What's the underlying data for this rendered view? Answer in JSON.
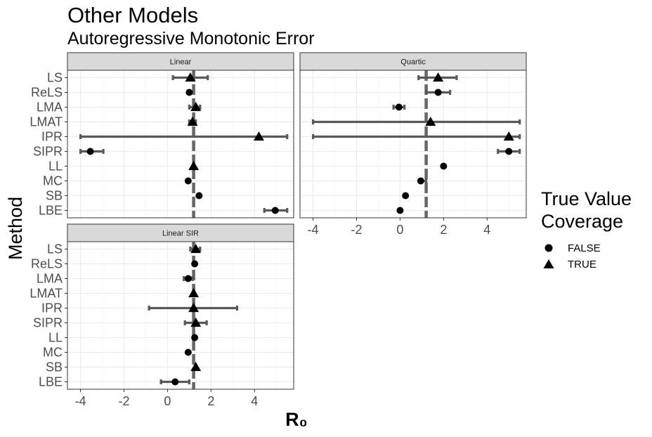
{
  "title": "Other Models",
  "subtitle": "Autoregressive Monotonic Error",
  "legend": {
    "title": "True Value\nCoverage",
    "entries": [
      {
        "label": "FALSE",
        "shape": "circle"
      },
      {
        "label": "TRUE",
        "shape": "triangle"
      }
    ]
  },
  "chart_data": {
    "type": "scatter",
    "xlabel": "R₀",
    "ylabel": "Method",
    "xlim": [
      -4.6,
      5.8
    ],
    "xticks": [
      -4,
      -2,
      0,
      2,
      4
    ],
    "grid": true,
    "legend_position": "right",
    "methods": [
      "LS",
      "ReLS",
      "LMA",
      "LMAT",
      "IPR",
      "SIPR",
      "LL",
      "MC",
      "SB",
      "LBE"
    ],
    "colors": {
      "estimate": "#000000",
      "interval": "#595959",
      "reference": "#666666",
      "strip_fill": "#d9d9d9",
      "grid": "#ebebeb"
    },
    "panels": [
      {
        "name": "Linear",
        "true_value": 1.2,
        "points": [
          {
            "method": "LS",
            "estimate": 1.05,
            "lower": 0.25,
            "upper": 1.85,
            "coverage": true
          },
          {
            "method": "ReLS",
            "estimate": 1.0,
            "lower": null,
            "upper": null,
            "coverage": false
          },
          {
            "method": "LMA",
            "estimate": 1.3,
            "lower": 1.0,
            "upper": 1.5,
            "coverage": true
          },
          {
            "method": "LMAT",
            "estimate": 1.15,
            "lower": 1.0,
            "upper": 1.3,
            "coverage": true
          },
          {
            "method": "IPR",
            "estimate": 4.2,
            "lower": -4.0,
            "upper": 5.5,
            "coverage": true
          },
          {
            "method": "SIPR",
            "estimate": -3.55,
            "lower": -4.0,
            "upper": -2.95,
            "coverage": false
          },
          {
            "method": "LL",
            "estimate": 1.2,
            "lower": null,
            "upper": null,
            "coverage": true
          },
          {
            "method": "MC",
            "estimate": 0.95,
            "lower": null,
            "upper": null,
            "coverage": false
          },
          {
            "method": "SB",
            "estimate": 1.45,
            "lower": null,
            "upper": null,
            "coverage": false
          },
          {
            "method": "LBE",
            "estimate": 4.95,
            "lower": 4.45,
            "upper": 5.5,
            "coverage": false
          }
        ]
      },
      {
        "name": "Quartic",
        "true_value": 1.2,
        "points": [
          {
            "method": "LS",
            "estimate": 1.75,
            "lower": 0.85,
            "upper": 2.6,
            "coverage": true
          },
          {
            "method": "ReLS",
            "estimate": 1.75,
            "lower": 1.2,
            "upper": 2.3,
            "coverage": false
          },
          {
            "method": "LMA",
            "estimate": -0.05,
            "lower": -0.3,
            "upper": 0.2,
            "coverage": false
          },
          {
            "method": "LMAT",
            "estimate": 1.4,
            "lower": -4.0,
            "upper": 5.5,
            "coverage": true
          },
          {
            "method": "IPR",
            "estimate": 5.0,
            "lower": -4.0,
            "upper": 5.5,
            "coverage": true
          },
          {
            "method": "SIPR",
            "estimate": 5.0,
            "lower": 4.5,
            "upper": 5.5,
            "coverage": false
          },
          {
            "method": "LL",
            "estimate": 2.0,
            "lower": null,
            "upper": null,
            "coverage": false
          },
          {
            "method": "MC",
            "estimate": 0.95,
            "lower": 0.9,
            "upper": 1.2,
            "coverage": false
          },
          {
            "method": "SB",
            "estimate": 0.25,
            "lower": null,
            "upper": null,
            "coverage": false
          },
          {
            "method": "LBE",
            "estimate": 0.0,
            "lower": null,
            "upper": null,
            "coverage": false
          }
        ]
      },
      {
        "name": "Linear SIR",
        "true_value": 1.2,
        "points": [
          {
            "method": "LS",
            "estimate": 1.3,
            "lower": 1.05,
            "upper": 1.5,
            "coverage": true
          },
          {
            "method": "ReLS",
            "estimate": 1.25,
            "lower": null,
            "upper": null,
            "coverage": false
          },
          {
            "method": "LMA",
            "estimate": 0.95,
            "lower": 0.75,
            "upper": 1.15,
            "coverage": false
          },
          {
            "method": "LMAT",
            "estimate": 1.2,
            "lower": null,
            "upper": null,
            "coverage": true
          },
          {
            "method": "IPR",
            "estimate": 1.2,
            "lower": -0.85,
            "upper": 3.2,
            "coverage": true
          },
          {
            "method": "SIPR",
            "estimate": 1.3,
            "lower": 0.8,
            "upper": 1.8,
            "coverage": true
          },
          {
            "method": "LL",
            "estimate": 1.25,
            "lower": null,
            "upper": null,
            "coverage": false
          },
          {
            "method": "MC",
            "estimate": 0.95,
            "lower": null,
            "upper": null,
            "coverage": false
          },
          {
            "method": "SB",
            "estimate": 1.3,
            "lower": null,
            "upper": null,
            "coverage": true
          },
          {
            "method": "LBE",
            "estimate": 0.35,
            "lower": -0.3,
            "upper": 1.0,
            "coverage": false
          }
        ]
      }
    ]
  }
}
